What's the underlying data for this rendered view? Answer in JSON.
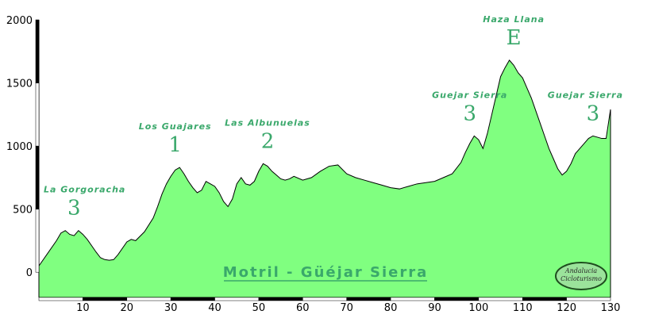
{
  "chart_data": {
    "type": "area",
    "x": [
      0,
      2,
      4,
      5,
      6,
      7,
      8,
      9,
      10,
      11,
      12,
      13,
      14,
      15,
      16,
      17,
      18,
      20,
      21,
      22,
      24,
      26,
      27,
      28,
      29,
      30,
      31,
      32,
      33,
      34,
      35,
      36,
      37,
      38,
      39,
      40,
      41,
      42,
      43,
      44,
      45,
      46,
      47,
      48,
      49,
      50,
      51,
      52,
      53,
      54,
      55,
      56,
      57,
      58,
      60,
      62,
      64,
      66,
      68,
      70,
      72,
      74,
      76,
      78,
      80,
      82,
      84,
      86,
      88,
      90,
      92,
      94,
      96,
      97,
      98,
      99,
      100,
      101,
      102,
      103,
      104,
      105,
      106,
      107,
      108,
      109,
      110,
      111,
      112,
      113,
      114,
      115,
      116,
      117,
      118,
      119,
      120,
      121,
      122,
      123,
      124,
      125,
      126,
      127,
      128,
      129,
      130
    ],
    "values": [
      50,
      150,
      250,
      310,
      330,
      300,
      290,
      330,
      300,
      260,
      210,
      160,
      115,
      100,
      95,
      100,
      140,
      240,
      260,
      250,
      320,
      430,
      520,
      620,
      700,
      760,
      810,
      830,
      780,
      720,
      670,
      630,
      650,
      720,
      700,
      680,
      630,
      560,
      520,
      580,
      700,
      750,
      700,
      690,
      720,
      800,
      860,
      840,
      800,
      770,
      740,
      730,
      740,
      760,
      730,
      750,
      800,
      840,
      850,
      780,
      750,
      730,
      710,
      690,
      670,
      660,
      680,
      700,
      710,
      720,
      750,
      780,
      870,
      950,
      1020,
      1080,
      1050,
      980,
      1100,
      1250,
      1400,
      1550,
      1620,
      1680,
      1640,
      1580,
      1540,
      1460,
      1380,
      1280,
      1180,
      1080,
      980,
      900,
      820,
      770,
      800,
      860,
      940,
      980,
      1020,
      1060,
      1080,
      1070,
      1060,
      1060,
      1290
    ],
    "xlim": [
      0,
      130
    ],
    "ylim": [
      -200,
      2000
    ],
    "x_ticks": [
      "10",
      "20",
      "30",
      "40",
      "50",
      "60",
      "70",
      "80",
      "90",
      "100",
      "110",
      "120",
      "130"
    ],
    "y_ticks": [
      "0",
      "500",
      "1000",
      "1500",
      "2000"
    ],
    "fill_color": "#80ff80",
    "line_color": "#000000",
    "annotations": [
      {
        "name": "La Gorgoracha",
        "category": "3",
        "x": 8
      },
      {
        "name": "Los Guajares",
        "category": "1",
        "x": 31
      },
      {
        "name": "Las Albunuelas",
        "category": "2",
        "x": 52
      },
      {
        "name": "Guejar Sierra",
        "category": "3",
        "x": 98
      },
      {
        "name": "Haza Llana",
        "category": "E",
        "x": 108
      },
      {
        "name": "Guejar Sierra",
        "category": "3",
        "x": 126
      }
    ],
    "route_title": "Motril - Güéjar Sierra",
    "badge": [
      "Andalucia",
      "Cicloturismo"
    ],
    "annotation_color": "#3aa86b"
  }
}
